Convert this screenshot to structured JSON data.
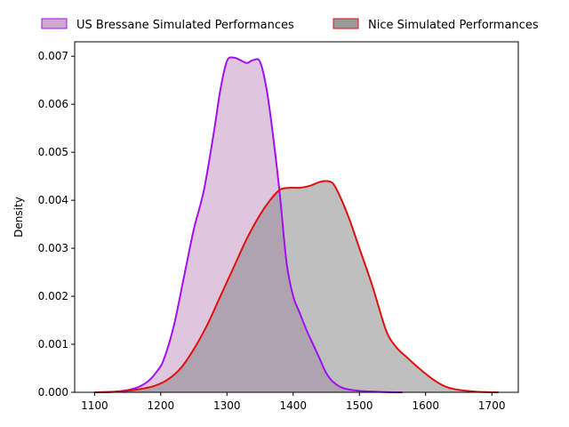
{
  "chart_data": {
    "type": "area",
    "title": "",
    "xlabel": "",
    "ylabel": "Density",
    "xlim": [
      1070,
      1740
    ],
    "ylim": [
      0,
      0.0073
    ],
    "x_ticks": [
      1100,
      1200,
      1300,
      1400,
      1500,
      1600,
      1700
    ],
    "y_ticks": [
      0.0,
      0.001,
      0.002,
      0.003,
      0.004,
      0.005,
      0.006,
      0.007
    ],
    "y_tick_labels": [
      "0.000",
      "0.001",
      "0.002",
      "0.003",
      "0.004",
      "0.005",
      "0.006",
      "0.007"
    ],
    "grid": false,
    "legend_position": "top-center-outside",
    "series": [
      {
        "name": "US Bressane Simulated Performances",
        "line_color": "#a010f0",
        "fill_color": "#c8a0c8",
        "fill_opacity": 0.6,
        "points": [
          [
            1100,
            0.0
          ],
          [
            1130,
            1e-05
          ],
          [
            1160,
            8e-05
          ],
          [
            1180,
            0.00022
          ],
          [
            1195,
            0.00045
          ],
          [
            1205,
            0.0007
          ],
          [
            1220,
            0.0014
          ],
          [
            1235,
            0.0024
          ],
          [
            1250,
            0.0034
          ],
          [
            1265,
            0.0042
          ],
          [
            1280,
            0.0054
          ],
          [
            1290,
            0.0063
          ],
          [
            1300,
            0.0069
          ],
          [
            1310,
            0.00697
          ],
          [
            1320,
            0.00692
          ],
          [
            1330,
            0.00686
          ],
          [
            1340,
            0.00692
          ],
          [
            1350,
            0.00688
          ],
          [
            1360,
            0.0063
          ],
          [
            1370,
            0.0053
          ],
          [
            1380,
            0.0041
          ],
          [
            1390,
            0.0027
          ],
          [
            1400,
            0.002
          ],
          [
            1410,
            0.00165
          ],
          [
            1420,
            0.0013
          ],
          [
            1430,
            0.001
          ],
          [
            1440,
            0.0007
          ],
          [
            1450,
            0.0004
          ],
          [
            1460,
            0.00022
          ],
          [
            1475,
            9e-05
          ],
          [
            1500,
            3e-05
          ],
          [
            1540,
            5e-06
          ],
          [
            1565,
            0.0
          ]
        ]
      },
      {
        "name": "Nice Simulated Performances",
        "line_color": "#e01010",
        "fill_color": "#808080",
        "fill_opacity": 0.5,
        "points": [
          [
            1100,
            0.0
          ],
          [
            1140,
            2e-05
          ],
          [
            1170,
            7e-05
          ],
          [
            1190,
            0.00013
          ],
          [
            1210,
            0.00026
          ],
          [
            1230,
            0.0005
          ],
          [
            1250,
            0.0009
          ],
          [
            1270,
            0.0014
          ],
          [
            1290,
            0.002
          ],
          [
            1310,
            0.0026
          ],
          [
            1330,
            0.0032
          ],
          [
            1350,
            0.0037
          ],
          [
            1365,
            0.004
          ],
          [
            1380,
            0.00422
          ],
          [
            1395,
            0.00426
          ],
          [
            1410,
            0.00426
          ],
          [
            1425,
            0.0043
          ],
          [
            1440,
            0.00438
          ],
          [
            1450,
            0.0044
          ],
          [
            1460,
            0.00435
          ],
          [
            1470,
            0.0041
          ],
          [
            1485,
            0.0036
          ],
          [
            1500,
            0.003
          ],
          [
            1520,
            0.0022
          ],
          [
            1540,
            0.0013
          ],
          [
            1555,
            0.00095
          ],
          [
            1570,
            0.00075
          ],
          [
            1590,
            0.0005
          ],
          [
            1610,
            0.00028
          ],
          [
            1630,
            0.00012
          ],
          [
            1650,
            5e-05
          ],
          [
            1680,
            1e-05
          ],
          [
            1710,
            0.0
          ]
        ]
      }
    ]
  }
}
